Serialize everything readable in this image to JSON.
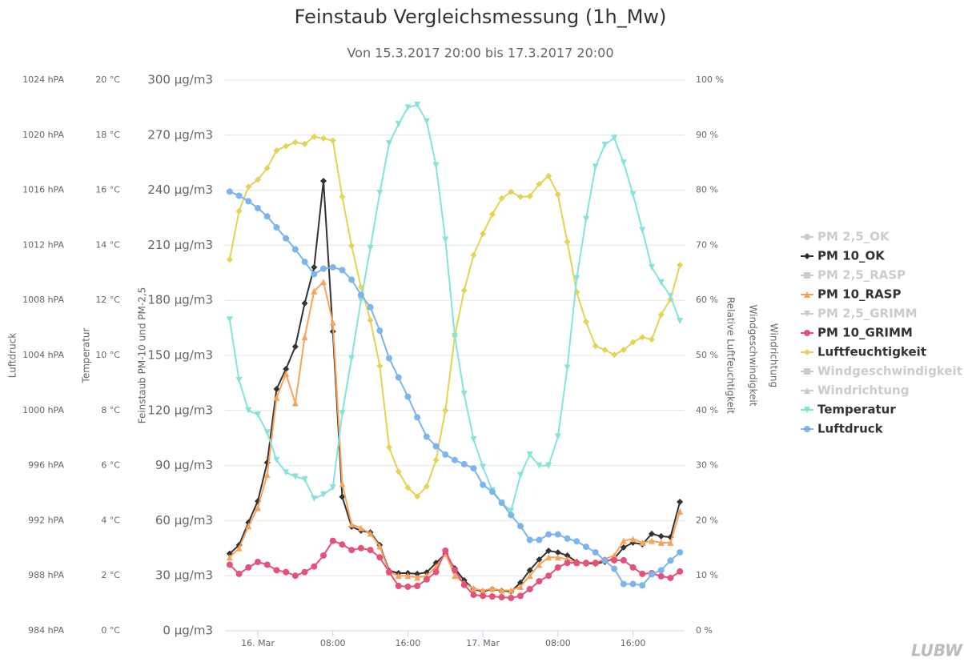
{
  "logo": "LUBW",
  "chart_data": {
    "type": "line",
    "title": "Feinstaub Vergleichsmessung (1h_Mw)",
    "subtitle": "Von 15.3.2017 20:00 bis 17.3.2017 20:00",
    "grid": true,
    "legend": "right",
    "categories": [
      null,
      null,
      null,
      "16. Mar",
      null,
      null,
      null,
      null,
      null,
      null,
      null,
      "08:00",
      null,
      null,
      null,
      null,
      null,
      null,
      null,
      "16:00",
      null,
      null,
      null,
      null,
      null,
      null,
      null,
      "17. Mar",
      null,
      null,
      null,
      null,
      null,
      null,
      null,
      "08:00",
      null,
      null,
      null,
      null,
      null,
      null,
      null,
      "16:00",
      null,
      null,
      null,
      null,
      null
    ],
    "y_axes": {
      "pressure": {
        "title": "Luftdruck",
        "lim": [
          984,
          1024
        ],
        "ticks": [
          {
            "value": 984,
            "label": "984 hPA"
          },
          {
            "value": 988,
            "label": "988 hPA"
          },
          {
            "value": 992,
            "label": "992 hPA"
          },
          {
            "value": 996,
            "label": "996 hPA"
          },
          {
            "value": 1000,
            "label": "1000 hPA"
          },
          {
            "value": 1004,
            "label": "1004 hPA"
          },
          {
            "value": 1008,
            "label": "1008 hPA"
          },
          {
            "value": 1012,
            "label": "1012 hPA"
          },
          {
            "value": 1016,
            "label": "1016 hPA"
          },
          {
            "value": 1020,
            "label": "1020 hPA"
          },
          {
            "value": 1024,
            "label": "1024 hPA"
          }
        ]
      },
      "temperature": {
        "title": "Temperatur",
        "lim": [
          0,
          20
        ],
        "ticks": [
          {
            "value": 0,
            "label": "0 °C"
          },
          {
            "value": 2,
            "label": "2 °C"
          },
          {
            "value": 4,
            "label": "4 °C"
          },
          {
            "value": 6,
            "label": "6 °C"
          },
          {
            "value": 8,
            "label": "8 °C"
          },
          {
            "value": 10,
            "label": "10 °C"
          },
          {
            "value": 12,
            "label": "12 °C"
          },
          {
            "value": 14,
            "label": "14 °C"
          },
          {
            "value": 16,
            "label": "16 °C"
          },
          {
            "value": 18,
            "label": "18 °C"
          },
          {
            "value": 20,
            "label": "20 °C"
          }
        ]
      },
      "pm": {
        "title": "Feinstaub PM-10 und PM-2,5",
        "lim": [
          0,
          300
        ],
        "ticks": [
          {
            "value": 0,
            "label": "0 µg/m3"
          },
          {
            "value": 30,
            "label": "30 µg/m3"
          },
          {
            "value": 60,
            "label": "60 µg/m3"
          },
          {
            "value": 90,
            "label": "90 µg/m3"
          },
          {
            "value": 120,
            "label": "120 µg/m3"
          },
          {
            "value": 150,
            "label": "150 µg/m3"
          },
          {
            "value": 180,
            "label": "180 µg/m3"
          },
          {
            "value": 210,
            "label": "210 µg/m3"
          },
          {
            "value": 240,
            "label": "240 µg/m3"
          },
          {
            "value": 270,
            "label": "270 µg/m3"
          },
          {
            "value": 300,
            "label": "300 µg/m3"
          }
        ]
      },
      "humidity": {
        "title": "Relative Luftfeuchtigkeit",
        "lim": [
          0,
          100
        ],
        "ticks": [
          {
            "value": 0,
            "label": "0 %"
          },
          {
            "value": 10,
            "label": "10 %"
          },
          {
            "value": 20,
            "label": "20 %"
          },
          {
            "value": 30,
            "label": "30 %"
          },
          {
            "value": 40,
            "label": "40 %"
          },
          {
            "value": 50,
            "label": "50 %"
          },
          {
            "value": 60,
            "label": "60 %"
          },
          {
            "value": 70,
            "label": "70 %"
          },
          {
            "value": 80,
            "label": "80 %"
          },
          {
            "value": 90,
            "label": "90 %"
          },
          {
            "value": 100,
            "label": "100 %"
          }
        ]
      },
      "wind_speed": {
        "title": "Windgeschwindigkeit"
      },
      "wind_direction": {
        "title": "Windrichtung"
      }
    },
    "series": [
      {
        "name": "PM 2,5_OK",
        "color": "#cccccc",
        "marker": "circle",
        "visible": false
      },
      {
        "name": "PM 10_OK",
        "color": "#333333",
        "marker": "diamond",
        "axis": "pm",
        "visible": true,
        "values": [
          42,
          46.7,
          59,
          70.6,
          91.6,
          131.7,
          142.6,
          154.8,
          178.4,
          198,
          245,
          163,
          73,
          56.7,
          54.5,
          53.6,
          46.7,
          32.7,
          31.4,
          31.4,
          31,
          31.8,
          37,
          41.9,
          34,
          27.5,
          22.7,
          21.4,
          22.7,
          21.8,
          21.4,
          26.2,
          33,
          38.8,
          43.6,
          42.7,
          41,
          37.5,
          36.6,
          36.6,
          37.5,
          39.3,
          45.4,
          48,
          47.1,
          52.8,
          51.5,
          51,
          70.2
        ]
      },
      {
        "name": "PM 2,5_RASP",
        "color": "#cccccc",
        "marker": "square",
        "visible": false
      },
      {
        "name": "PM 10_RASP",
        "color": "#f7a35c",
        "marker": "triangle",
        "axis": "pm",
        "visible": true,
        "values": [
          40,
          45,
          57,
          67,
          85,
          127,
          140,
          124,
          160,
          185,
          190,
          168,
          80,
          58,
          56,
          53,
          46,
          32,
          30,
          30,
          29,
          30,
          35,
          42,
          30,
          26,
          23,
          22,
          23,
          22,
          22,
          24,
          30,
          36,
          40,
          40,
          39,
          37,
          37,
          37,
          39,
          41,
          49,
          50,
          48,
          49,
          48,
          48,
          65
        ]
      },
      {
        "name": "PM 2,5_GRIMM",
        "color": "#cccccc",
        "marker": "triangle-down",
        "visible": false
      },
      {
        "name": "PM 10_GRIMM",
        "color": "#e4517a",
        "marker": "circle",
        "axis": "pm",
        "visible": true,
        "values": [
          36,
          31,
          34.5,
          37.5,
          36,
          33,
          32,
          30,
          32,
          35,
          41,
          49,
          47,
          44,
          45,
          44,
          40,
          32,
          24.4,
          24,
          24.4,
          28,
          32,
          43.6,
          33,
          25,
          19.6,
          19,
          18.7,
          18.3,
          17.9,
          19,
          22.7,
          27,
          30,
          34.5,
          37,
          37,
          37,
          37,
          38.4,
          38.4,
          38.4,
          34.5,
          31,
          31.4,
          29.7,
          28.8,
          32.3
        ]
      },
      {
        "name": "Luftfeuchtigkeit",
        "color": "#e4d354",
        "marker": "diamond",
        "axis": "humidity",
        "visible": true,
        "values": [
          67.4,
          76.2,
          80.6,
          81.9,
          84,
          87.2,
          88,
          88.7,
          88.4,
          89.7,
          89.4,
          89,
          78.8,
          69.9,
          62.4,
          56.4,
          48.1,
          33.3,
          28.9,
          26,
          24.4,
          26.2,
          31,
          40,
          53.5,
          61.8,
          68.2,
          72.1,
          75.6,
          78.5,
          79.7,
          78.8,
          78.9,
          81.1,
          82.6,
          79.2,
          70.6,
          61.5,
          56.1,
          51.7,
          51,
          50.1,
          51,
          52.4,
          53.3,
          52.9,
          57.4,
          60.2,
          66.4
        ]
      },
      {
        "name": "Windgeschwindigkeit",
        "color": "#cccccc",
        "marker": "square",
        "visible": false
      },
      {
        "name": "Windrichtung",
        "color": "#cccccc",
        "marker": "triangle",
        "visible": false
      },
      {
        "name": "Temperatur",
        "color": "#85e3da",
        "marker": "triangle-down",
        "axis": "temperature",
        "visible": true,
        "values": [
          11.3,
          9.1,
          8.0,
          7.85,
          7.2,
          6.2,
          5.75,
          5.6,
          5.5,
          4.8,
          4.95,
          5.2,
          7.9,
          9.9,
          12,
          13.9,
          15.9,
          17.7,
          18.4,
          19,
          19.1,
          18.5,
          16.9,
          14.2,
          10.7,
          8.6,
          6.95,
          5.95,
          5.1,
          4.65,
          4.35,
          5.65,
          6.4,
          6.0,
          6.0,
          7.05,
          9.55,
          12.8,
          14.95,
          16.85,
          17.65,
          17.9,
          17,
          15.85,
          14.55,
          13.2,
          12.65,
          12.15,
          11.25
        ]
      },
      {
        "name": "Luftdruck",
        "color": "#7cb5ec",
        "marker": "circle",
        "axis": "pressure",
        "visible": true,
        "values": [
          1015.9,
          1015.6,
          1015.2,
          1014.7,
          1014.1,
          1013.3,
          1012.5,
          1011.7,
          1010.8,
          1009.9,
          1010.3,
          1010.4,
          1010.2,
          1009.5,
          1008.4,
          1007.5,
          1005.8,
          1003.8,
          1002.4,
          1001,
          999.5,
          998.1,
          997.4,
          996.8,
          996.4,
          996.1,
          995.8,
          994.6,
          994.1,
          993.3,
          992.4,
          991.6,
          990.6,
          990.6,
          991,
          991,
          990.7,
          990.5,
          990.1,
          989.7,
          989.1,
          988.5,
          987.4,
          987.4,
          987.3,
          988.1,
          988.4,
          989.1,
          989.7
        ]
      }
    ]
  }
}
